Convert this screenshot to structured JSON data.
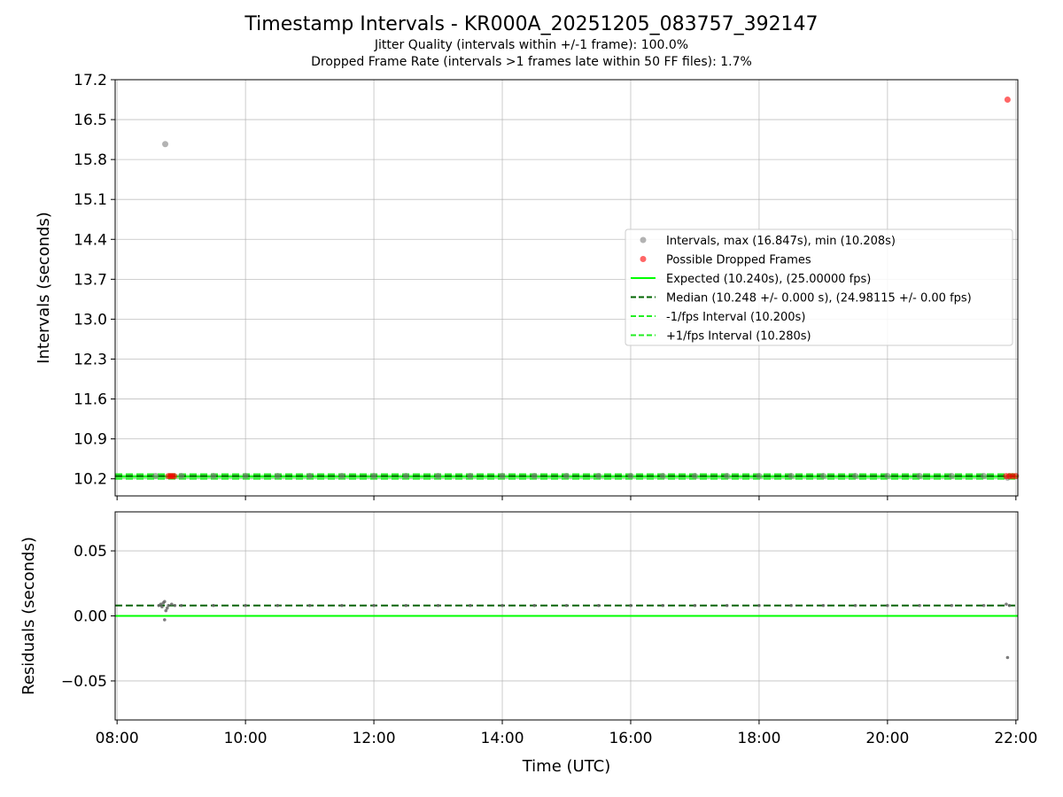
{
  "figure": {
    "title": "Timestamp Intervals - KR000A_20251205_083757_392147",
    "subtitle1": "Jitter Quality (intervals within +/-1 frame): 100.0%",
    "subtitle2": "Dropped Frame Rate (intervals >1 frames late within 50 FF files): 1.7%"
  },
  "chart_data": [
    {
      "type": "scatter",
      "panel": "top",
      "ylabel": "Intervals (seconds)",
      "xlabel": "",
      "x_unit": "hours UTC",
      "xlim": [
        7.97,
        22.03
      ],
      "ylim": [
        9.9,
        17.2
      ],
      "yticks": [
        10.2,
        10.9,
        11.6,
        12.3,
        13.0,
        13.7,
        14.4,
        15.1,
        15.8,
        16.5,
        17.2
      ],
      "ytick_labels": [
        "10.2",
        "10.9",
        "11.6",
        "12.3",
        "13.0",
        "13.7",
        "14.4",
        "15.1",
        "15.8",
        "16.5",
        "17.2"
      ],
      "grid": true,
      "legend_position": "right",
      "legend": [
        {
          "label": "Intervals, max (16.847s), min (10.208s)",
          "marker": "dot",
          "color": "#808080"
        },
        {
          "label": "Possible Dropped Frames",
          "marker": "dot",
          "color": "#ff0000"
        },
        {
          "label": "Expected (10.240s), (25.00000 fps)",
          "marker": "solid",
          "color": "#00ff00"
        },
        {
          "label": "Median (10.248 +/- 0.000 s), (24.98115 +/- 0.00 fps)",
          "marker": "dashed",
          "color": "#006400"
        },
        {
          "label": "-1/fps Interval (10.200s)",
          "marker": "dashed",
          "color": "#22ee22"
        },
        {
          "label": "+1/fps Interval (10.280s)",
          "marker": "dashed",
          "color": "#22ee22"
        }
      ],
      "lines": [
        {
          "name": "Expected",
          "y": 10.24,
          "style": "solid",
          "color": "#00ff00"
        },
        {
          "name": "Median",
          "y": 10.248,
          "style": "dashed",
          "color": "#006400"
        },
        {
          "name": "-1/fps Interval",
          "y": 10.2,
          "style": "dashed",
          "color": "#22ee22"
        },
        {
          "name": "+1/fps Interval",
          "y": 10.28,
          "style": "dashed",
          "color": "#22ee22"
        }
      ],
      "series": [
        {
          "name": "Intervals",
          "color": "#808080",
          "points": [
            {
              "x": 8.75,
              "y": 16.07
            },
            {
              "x": 21.87,
              "y": 10.22
            },
            {
              "x": 8.6,
              "y": 10.25
            },
            {
              "x": 9.0,
              "y": 10.25
            },
            {
              "x": 9.5,
              "y": 10.25
            },
            {
              "x": 10.0,
              "y": 10.25
            },
            {
              "x": 10.5,
              "y": 10.25
            },
            {
              "x": 11.0,
              "y": 10.25
            },
            {
              "x": 11.5,
              "y": 10.25
            },
            {
              "x": 12.0,
              "y": 10.25
            },
            {
              "x": 12.5,
              "y": 10.25
            },
            {
              "x": 13.0,
              "y": 10.25
            },
            {
              "x": 13.5,
              "y": 10.25
            },
            {
              "x": 14.0,
              "y": 10.25
            },
            {
              "x": 14.5,
              "y": 10.25
            },
            {
              "x": 15.0,
              "y": 10.25
            },
            {
              "x": 15.5,
              "y": 10.25
            },
            {
              "x": 16.0,
              "y": 10.25
            },
            {
              "x": 16.5,
              "y": 10.25
            },
            {
              "x": 17.0,
              "y": 10.25
            },
            {
              "x": 17.5,
              "y": 10.25
            },
            {
              "x": 18.0,
              "y": 10.25
            },
            {
              "x": 18.5,
              "y": 10.25
            },
            {
              "x": 19.0,
              "y": 10.25
            },
            {
              "x": 19.5,
              "y": 10.25
            },
            {
              "x": 20.0,
              "y": 10.25
            },
            {
              "x": 20.5,
              "y": 10.25
            },
            {
              "x": 21.0,
              "y": 10.25
            },
            {
              "x": 21.5,
              "y": 10.25
            }
          ]
        },
        {
          "name": "Possible Dropped Frames",
          "color": "#ff0000",
          "points": [
            {
              "x": 8.8,
              "y": 10.248
            },
            {
              "x": 8.83,
              "y": 10.248
            },
            {
              "x": 8.86,
              "y": 10.248
            },
            {
              "x": 8.89,
              "y": 10.248
            },
            {
              "x": 21.87,
              "y": 16.85
            },
            {
              "x": 21.85,
              "y": 10.248
            },
            {
              "x": 21.9,
              "y": 10.248
            },
            {
              "x": 21.95,
              "y": 10.248
            },
            {
              "x": 22.0,
              "y": 10.248
            }
          ]
        }
      ]
    },
    {
      "type": "scatter",
      "panel": "bottom",
      "ylabel": "Residuals (seconds)",
      "xlabel": "Time (UTC)",
      "x_unit": "hours UTC",
      "xlim": [
        7.97,
        22.03
      ],
      "ylim": [
        -0.08,
        0.08
      ],
      "yticks": [
        0.05,
        0.0,
        -0.05
      ],
      "ytick_labels": [
        "0.05",
        "0.00",
        "−0.05"
      ],
      "xticks": [
        8,
        10,
        12,
        14,
        16,
        18,
        20,
        22
      ],
      "xtick_labels": [
        "08:00",
        "10:00",
        "12:00",
        "14:00",
        "16:00",
        "18:00",
        "20:00",
        "22:00"
      ],
      "grid": true,
      "lines": [
        {
          "name": "Zero",
          "y": 0.0,
          "style": "solid",
          "color": "#00ff00"
        },
        {
          "name": "Median residual",
          "y": 0.008,
          "style": "dashed",
          "color": "#006400"
        }
      ],
      "series": [
        {
          "name": "Residuals",
          "color": "#666666",
          "points": [
            {
              "x": 8.65,
              "y": 0.008
            },
            {
              "x": 8.68,
              "y": 0.009
            },
            {
              "x": 8.7,
              "y": 0.007
            },
            {
              "x": 8.72,
              "y": 0.01
            },
            {
              "x": 8.74,
              "y": 0.011
            },
            {
              "x": 8.74,
              "y": -0.003
            },
            {
              "x": 8.76,
              "y": 0.004
            },
            {
              "x": 8.78,
              "y": 0.006
            },
            {
              "x": 8.8,
              "y": 0.008
            },
            {
              "x": 8.85,
              "y": 0.009
            },
            {
              "x": 8.9,
              "y": 0.008
            },
            {
              "x": 9.0,
              "y": 0.008
            },
            {
              "x": 9.5,
              "y": 0.008
            },
            {
              "x": 10.0,
              "y": 0.008
            },
            {
              "x": 10.5,
              "y": 0.008
            },
            {
              "x": 11.0,
              "y": 0.008
            },
            {
              "x": 11.5,
              "y": 0.008
            },
            {
              "x": 12.0,
              "y": 0.008
            },
            {
              "x": 12.5,
              "y": 0.008
            },
            {
              "x": 13.0,
              "y": 0.008
            },
            {
              "x": 13.5,
              "y": 0.008
            },
            {
              "x": 14.0,
              "y": 0.008
            },
            {
              "x": 14.5,
              "y": 0.008
            },
            {
              "x": 15.0,
              "y": 0.008
            },
            {
              "x": 15.5,
              "y": 0.008
            },
            {
              "x": 16.0,
              "y": 0.008
            },
            {
              "x": 16.5,
              "y": 0.008
            },
            {
              "x": 17.0,
              "y": 0.008
            },
            {
              "x": 17.5,
              "y": 0.008
            },
            {
              "x": 18.0,
              "y": 0.008
            },
            {
              "x": 18.5,
              "y": 0.008
            },
            {
              "x": 19.0,
              "y": 0.008
            },
            {
              "x": 19.5,
              "y": 0.008
            },
            {
              "x": 20.0,
              "y": 0.008
            },
            {
              "x": 20.5,
              "y": 0.008
            },
            {
              "x": 21.0,
              "y": 0.008
            },
            {
              "x": 21.5,
              "y": 0.008
            },
            {
              "x": 21.85,
              "y": 0.009
            },
            {
              "x": 21.87,
              "y": -0.032
            },
            {
              "x": 21.9,
              "y": 0.008
            }
          ]
        }
      ]
    }
  ]
}
